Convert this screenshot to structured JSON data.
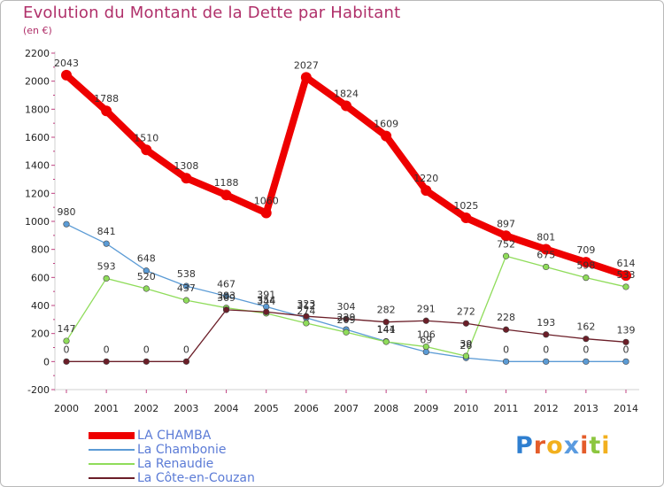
{
  "title": "Evolution du Montant de la Dette par Habitant",
  "subtitle": "(en €)",
  "logo_text": "Proxiti",
  "chart_data": {
    "type": "line",
    "title": "Evolution du Montant de la Dette par Habitant",
    "subtitle": "(en €)",
    "xlabel": "",
    "ylabel": "",
    "x": [
      "2000",
      "2001",
      "2002",
      "2003",
      "2004",
      "2005",
      "2006",
      "2007",
      "2008",
      "2009",
      "2010",
      "2011",
      "2012",
      "2013",
      "2014"
    ],
    "ylim": [
      -200,
      2200
    ],
    "yticks": [
      "-200",
      "0",
      "200",
      "400",
      "600",
      "800",
      "1000",
      "1200",
      "1400",
      "1600",
      "1800",
      "2000",
      "2200"
    ],
    "grid": false,
    "legend_position": "bottom-left",
    "series": [
      {
        "name": "LA CHAMBA",
        "color": "#ee0000",
        "emphasis": true,
        "values": [
          2043,
          1788,
          1510,
          1308,
          1188,
          1060,
          2027,
          1824,
          1609,
          1220,
          1025,
          897,
          801,
          709,
          614
        ]
      },
      {
        "name": "La Chambonie",
        "color": "#5b9bd5",
        "emphasis": false,
        "values": [
          980,
          841,
          648,
          538,
          467,
          391,
          312,
          229,
          144,
          69,
          26,
          0,
          0,
          0,
          0
        ]
      },
      {
        "name": "La Renaudie",
        "color": "#8fdc5a",
        "emphasis": false,
        "values": [
          147,
          593,
          520,
          437,
          383,
          344,
          274,
          209,
          141,
          106,
          39,
          752,
          675,
          598,
          533
        ]
      },
      {
        "name": "La Côte-en-Couzan",
        "color": "#6b1e28",
        "emphasis": false,
        "values": [
          0,
          0,
          0,
          0,
          369,
          354,
          323,
          304,
          282,
          291,
          272,
          228,
          193,
          162,
          139
        ]
      }
    ]
  }
}
